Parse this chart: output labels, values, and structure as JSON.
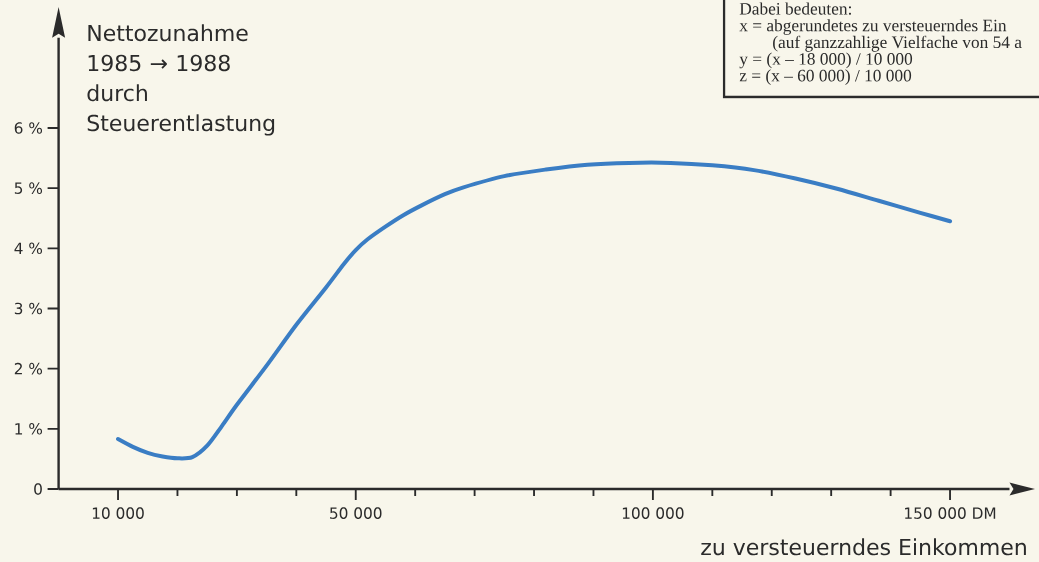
{
  "chart_data": {
    "type": "line",
    "ylabel": "Nettozunahme 1985 → 1988 durch Steuerentlastung",
    "xlabel": "zu versteuerndes Einkommen",
    "annotations": [
      "Dabei bedeuten:",
      "x = abgerundetes zu versteuerndes Ein",
      "(auf ganzzahlige Vielfache von 54 a",
      "y = (x – 18 000) / 10 000",
      "z = (x – 60 000) / 10 000"
    ],
    "x": [
      10000,
      12500,
      15000,
      17500,
      20000,
      22500,
      25000,
      27500,
      30000,
      35000,
      40000,
      45000,
      48000,
      50000,
      52000,
      55000,
      58000,
      61000,
      65000,
      68000,
      75000,
      82000,
      89000,
      96000,
      103000,
      110000,
      117000,
      124000,
      131000,
      138000,
      145000,
      150000
    ],
    "series": [
      {
        "color": "#3a7dc4",
        "values": [
          0.83,
          0.7,
          0.6,
          0.54,
          0.51,
          0.53,
          0.72,
          1.05,
          1.4,
          2.05,
          2.73,
          3.35,
          3.74,
          3.97,
          4.15,
          4.36,
          4.55,
          4.71,
          4.9,
          5.01,
          5.2,
          5.31,
          5.39,
          5.42,
          5.42,
          5.38,
          5.3,
          5.16,
          4.99,
          4.79,
          4.59,
          4.45
        ]
      }
    ],
    "xlim": [
      0,
      160000
    ],
    "ylim": [
      0,
      7.5
    ],
    "xticks": [
      {
        "value": 10000,
        "label": "10 000"
      },
      {
        "value": 20000,
        "label": null
      },
      {
        "value": 30000,
        "label": null
      },
      {
        "value": 40000,
        "label": null
      },
      {
        "value": 50000,
        "label": "50 000"
      },
      {
        "value": 60000,
        "label": null
      },
      {
        "value": 70000,
        "label": null
      },
      {
        "value": 80000,
        "label": null
      },
      {
        "value": 90000,
        "label": null
      },
      {
        "value": 100000,
        "label": "100 000"
      },
      {
        "value": 110000,
        "label": null
      },
      {
        "value": 120000,
        "label": null
      },
      {
        "value": 130000,
        "label": null
      },
      {
        "value": 140000,
        "label": null
      },
      {
        "value": 150000,
        "label": "150 000 DM"
      }
    ],
    "yticks": [
      0,
      {
        "value": 1,
        "label": "1 %"
      },
      {
        "value": 2,
        "label": "2 %"
      },
      {
        "value": 3,
        "label": "3 %"
      },
      {
        "value": 4,
        "label": "4 %"
      },
      {
        "value": 5,
        "label": "5 %"
      },
      {
        "value": 6,
        "label": "6 %"
      }
    ]
  }
}
